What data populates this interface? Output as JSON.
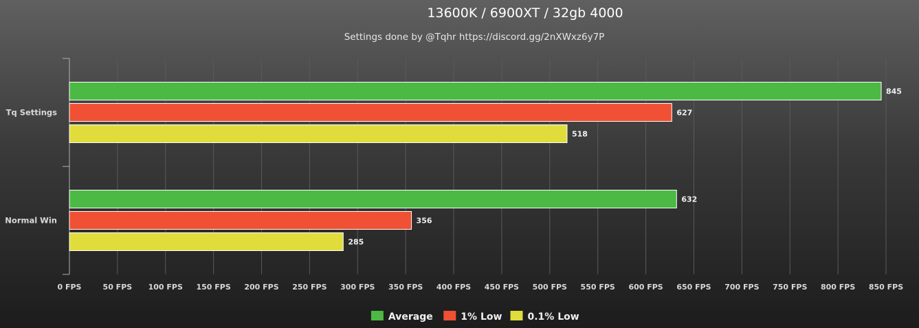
{
  "chart_data": {
    "type": "bar",
    "orientation": "horizontal",
    "title": "13600K / 6900XT / 32gb 4000",
    "subtitle": "Settings done by @Tqhr https://discord.gg/2nXWxz6y7P",
    "categories": [
      "Tq Settings",
      "Normal Win"
    ],
    "series": [
      {
        "name": "Average",
        "color": "#4cb944",
        "values": [
          845,
          632
        ]
      },
      {
        "name": "1% Low",
        "color": "#f05033",
        "values": [
          627,
          356
        ]
      },
      {
        "name": "0.1% Low",
        "color": "#e0dc3c",
        "values": [
          518,
          285
        ]
      }
    ],
    "xlim": [
      0,
      850
    ],
    "x_tick_step": 50,
    "x_tick_suffix": " FPS",
    "grid": true,
    "legend_position": "bottom-center"
  }
}
